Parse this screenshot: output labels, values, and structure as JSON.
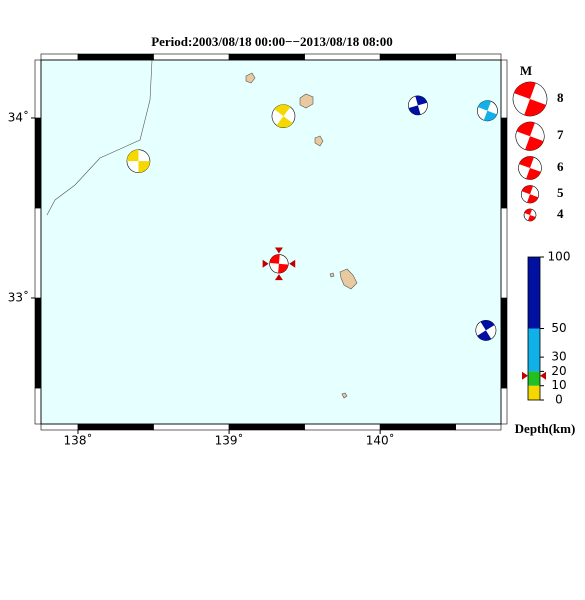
{
  "title": "Period:2003/08/18 00:00−−2013/08/18 08:00",
  "map": {
    "xlim": [
      137.755,
      140.8
    ],
    "ylim": [
      32.3,
      34.322
    ],
    "xticks": [
      {
        "value": 138,
        "label": "138˚"
      },
      {
        "value": 139,
        "label": "139˚"
      },
      {
        "value": 140,
        "label": "140˚"
      }
    ],
    "yticks": [
      {
        "value": 33,
        "label": "33˚"
      },
      {
        "value": 34,
        "label": "34˚"
      }
    ],
    "events": [
      {
        "lon": 138.4,
        "lat": 33.76,
        "depth": 5,
        "mag": 6
      },
      {
        "lon": 139.36,
        "lat": 34.01,
        "depth": 6,
        "mag": 6
      },
      {
        "lon": 140.25,
        "lat": 34.07,
        "depth": 70,
        "mag": 5.3
      },
      {
        "lon": 140.71,
        "lat": 34.04,
        "depth": 40,
        "mag": 5.5
      },
      {
        "lon": 140.7,
        "lat": 32.82,
        "depth": 70,
        "mag": 5.5
      },
      {
        "lon": 139.33,
        "lat": 33.19,
        "depth": 17,
        "mag": 5.2,
        "latest": true
      }
    ]
  },
  "magnitude_legend": {
    "title": "M",
    "values": [
      8,
      7,
      6,
      5,
      4
    ]
  },
  "depth_scale": {
    "title": "Depth(km)",
    "lim": [
      0,
      100
    ],
    "ticks": [
      0,
      10,
      20,
      30,
      50,
      100
    ],
    "bands": [
      {
        "from": 0,
        "to": 10,
        "color": "#f5d800"
      },
      {
        "from": 10,
        "to": 20,
        "color": "#22c022"
      },
      {
        "from": 20,
        "to": 50,
        "color": "#10b0e8"
      },
      {
        "from": 50,
        "to": 100,
        "color": "#0010a0"
      }
    ],
    "latest_color": "#ff0000"
  }
}
